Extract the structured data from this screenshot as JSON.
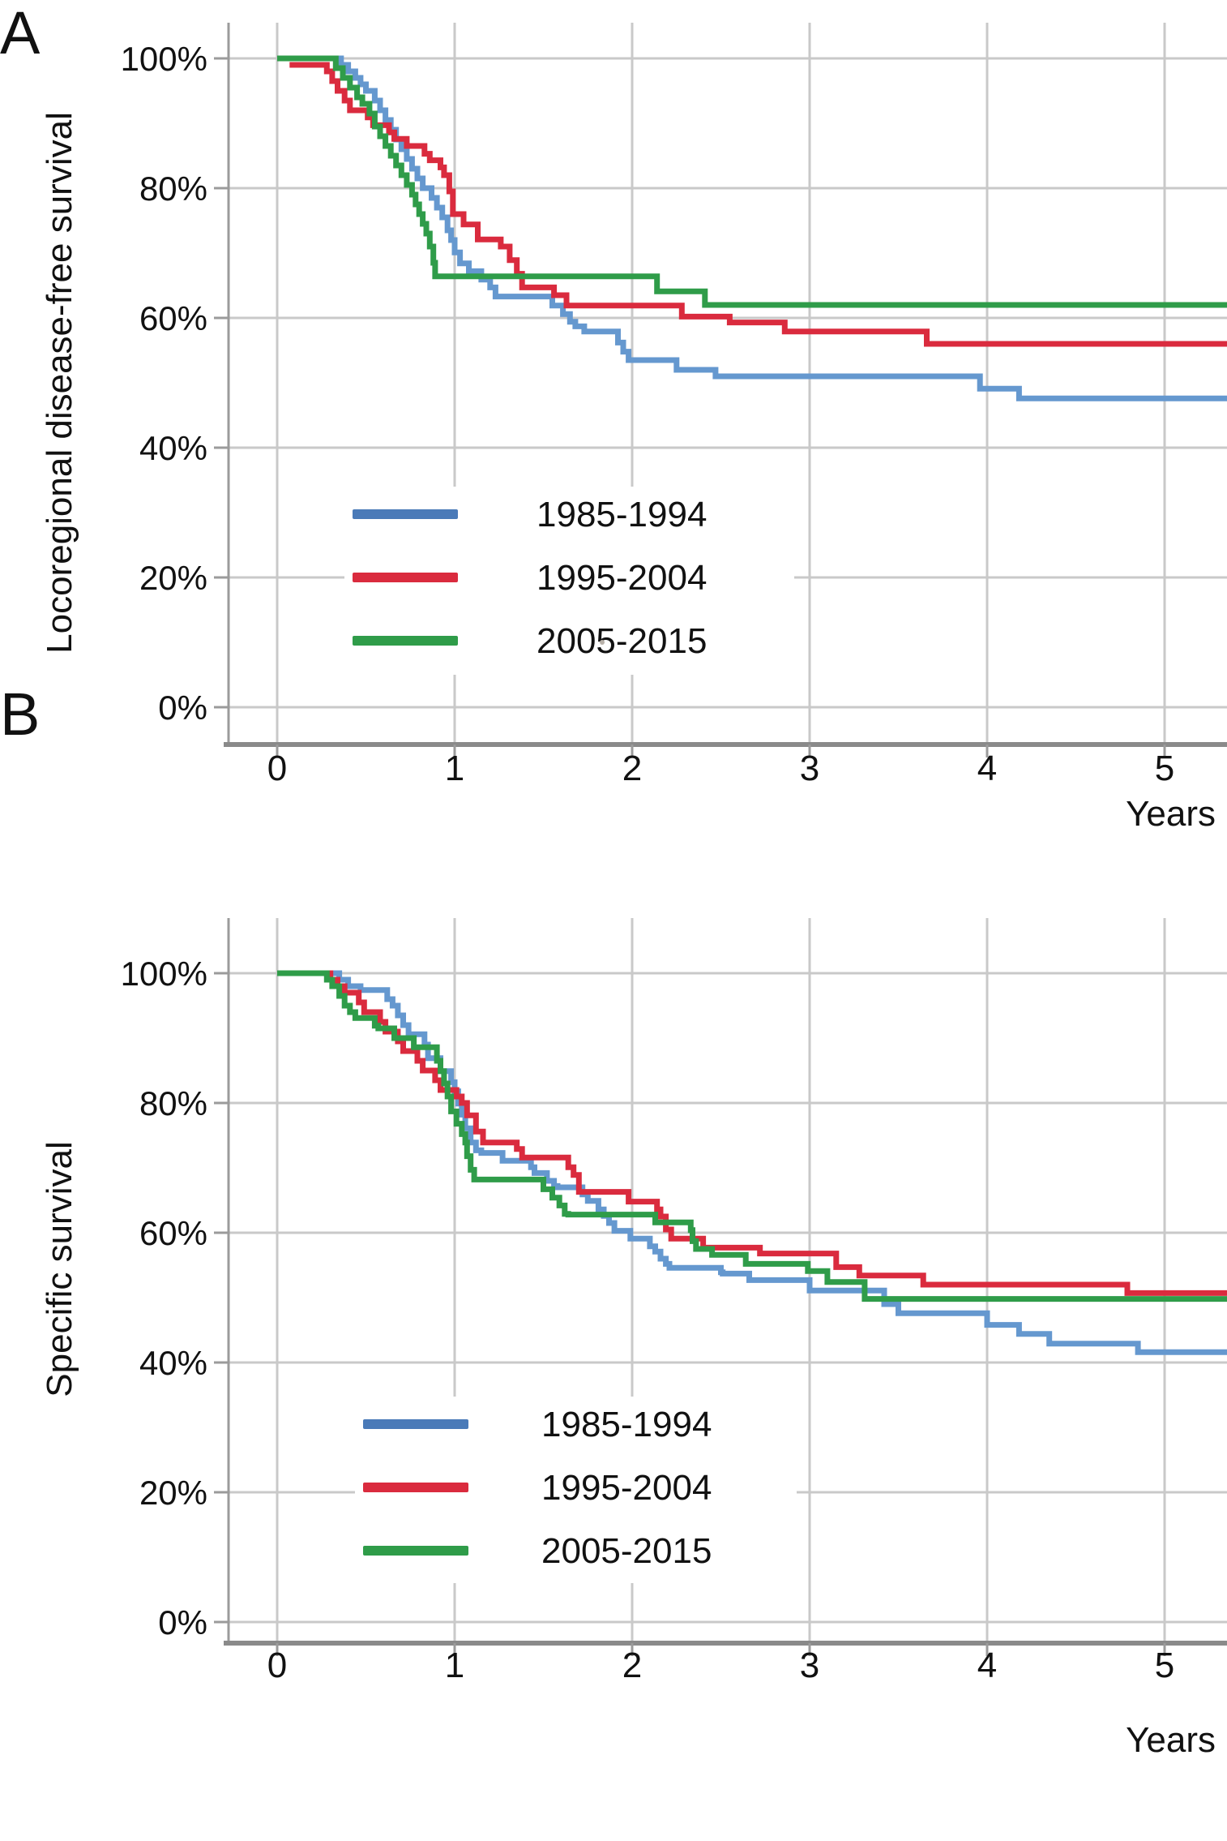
{
  "panels": [
    {
      "panel_letter": "A",
      "y_axis_title": "Locoregional disease-free survival",
      "x_axis_title": "Years",
      "y_tick_labels": [
        "100%",
        "80%",
        "60%",
        "40%",
        "20%",
        "0%"
      ],
      "x_tick_labels": [
        "0",
        "1",
        "2",
        "3",
        "4",
        "5"
      ],
      "legend": {
        "items": [
          {
            "label": "1985-1994",
            "color": "#4a7ab8"
          },
          {
            "label": "1995-2004",
            "color": "#da2b3e"
          },
          {
            "label": "2005-2015",
            "color": "#2f9c49"
          }
        ]
      }
    },
    {
      "panel_letter": "B",
      "y_axis_title": "Specific survival",
      "x_axis_title": "Years",
      "y_tick_labels": [
        "100%",
        "80%",
        "60%",
        "40%",
        "20%",
        "0%"
      ],
      "x_tick_labels": [
        "0",
        "1",
        "2",
        "3",
        "4",
        "5"
      ],
      "legend": {
        "items": [
          {
            "label": "1985-1994",
            "color": "#4a7ab8"
          },
          {
            "label": "1995-2004",
            "color": "#da2b3e"
          },
          {
            "label": "2005-2015",
            "color": "#2f9c49"
          }
        ]
      }
    }
  ],
  "chart_data": [
    {
      "type": "line",
      "subtype": "kaplan-meier-step",
      "title": "",
      "xlabel": "Years",
      "ylabel": "Locoregional disease-free survival",
      "xlim": [
        -0.28,
        5.35
      ],
      "ylim": [
        0,
        100
      ],
      "x_ticks": [
        0,
        1,
        2,
        3,
        4,
        5
      ],
      "y_ticks_percent": [
        100,
        80,
        60,
        40,
        20,
        0
      ],
      "grid": true,
      "legend_position": "inside-lower-left",
      "series": [
        {
          "name": "1985-1994",
          "color": "#6598cf",
          "step": "post",
          "points": [
            [
              0,
              100
            ],
            [
              0.36,
              99
            ],
            [
              0.4,
              98
            ],
            [
              0.44,
              97
            ],
            [
              0.47,
              96
            ],
            [
              0.5,
              95
            ],
            [
              0.55,
              93.5
            ],
            [
              0.58,
              92
            ],
            [
              0.61,
              90.5
            ],
            [
              0.64,
              89
            ],
            [
              0.67,
              87.5
            ],
            [
              0.7,
              86
            ],
            [
              0.73,
              84.5
            ],
            [
              0.76,
              83
            ],
            [
              0.79,
              81.5
            ],
            [
              0.82,
              80
            ],
            [
              0.87,
              78.5
            ],
            [
              0.9,
              77
            ],
            [
              0.93,
              75.5
            ],
            [
              0.96,
              73.5
            ],
            [
              0.98,
              72
            ],
            [
              1.0,
              70.1
            ],
            [
              1.03,
              68.4
            ],
            [
              1.08,
              67.2
            ],
            [
              1.15,
              65.9
            ],
            [
              1.2,
              64.7
            ],
            [
              1.23,
              63.3
            ],
            [
              1.55,
              61.9
            ],
            [
              1.61,
              60.6
            ],
            [
              1.65,
              59.4
            ],
            [
              1.68,
              58.7
            ],
            [
              1.73,
              57.9
            ],
            [
              1.92,
              56.2
            ],
            [
              1.95,
              54.8
            ],
            [
              1.98,
              53.5
            ],
            [
              2.25,
              52
            ],
            [
              2.47,
              51
            ],
            [
              3.96,
              49.1
            ],
            [
              4.18,
              47.6
            ]
          ]
        },
        {
          "name": "1995-2004",
          "color": "#da2b3e",
          "step": "post",
          "points": [
            [
              0.07,
              99
            ],
            [
              0.28,
              98
            ],
            [
              0.31,
              96.5
            ],
            [
              0.34,
              95
            ],
            [
              0.38,
              93.5
            ],
            [
              0.41,
              92
            ],
            [
              0.51,
              90.9
            ],
            [
              0.54,
              89.7
            ],
            [
              0.63,
              88.6
            ],
            [
              0.66,
              87.6
            ],
            [
              0.73,
              86.5
            ],
            [
              0.83,
              85.3
            ],
            [
              0.86,
              84.3
            ],
            [
              0.92,
              83.2
            ],
            [
              0.94,
              82
            ],
            [
              0.97,
              79.5
            ],
            [
              0.99,
              76
            ],
            [
              1.05,
              74.4
            ],
            [
              1.13,
              72.1
            ],
            [
              1.26,
              71
            ],
            [
              1.31,
              68.9
            ],
            [
              1.35,
              66.8
            ],
            [
              1.38,
              64.7
            ],
            [
              1.56,
              63.5
            ],
            [
              1.63,
              61.9
            ],
            [
              2.28,
              60.2
            ],
            [
              2.55,
              59.3
            ],
            [
              2.86,
              57.9
            ],
            [
              3.66,
              56
            ]
          ]
        },
        {
          "name": "2005-2015",
          "color": "#2f9c49",
          "step": "post",
          "points": [
            [
              0,
              100
            ],
            [
              0.33,
              98.5
            ],
            [
              0.37,
              97
            ],
            [
              0.41,
              95.5
            ],
            [
              0.45,
              94
            ],
            [
              0.48,
              93
            ],
            [
              0.52,
              91.5
            ],
            [
              0.55,
              89.5
            ],
            [
              0.58,
              88
            ],
            [
              0.61,
              86.5
            ],
            [
              0.64,
              85
            ],
            [
              0.67,
              83.5
            ],
            [
              0.7,
              82
            ],
            [
              0.73,
              80.5
            ],
            [
              0.76,
              79
            ],
            [
              0.78,
              77.5
            ],
            [
              0.8,
              76
            ],
            [
              0.82,
              74.5
            ],
            [
              0.84,
              73
            ],
            [
              0.86,
              71
            ],
            [
              0.88,
              68.5
            ],
            [
              0.89,
              66.4
            ],
            [
              2.14,
              64.1
            ],
            [
              2.41,
              62
            ]
          ]
        }
      ]
    },
    {
      "type": "line",
      "subtype": "kaplan-meier-step",
      "title": "",
      "xlabel": "Years",
      "ylabel": "Specific survival",
      "xlim": [
        -0.28,
        5.35
      ],
      "ylim": [
        0,
        100
      ],
      "x_ticks": [
        0,
        1,
        2,
        3,
        4,
        5
      ],
      "y_ticks_percent": [
        100,
        80,
        60,
        40,
        20,
        0
      ],
      "grid": true,
      "legend_position": "inside-lower-left",
      "series": [
        {
          "name": "1985-1994",
          "color": "#6598cf",
          "step": "post",
          "points": [
            [
              0,
              100
            ],
            [
              0.35,
              99
            ],
            [
              0.4,
              98
            ],
            [
              0.47,
              97.4
            ],
            [
              0.62,
              96
            ],
            [
              0.65,
              95
            ],
            [
              0.68,
              93.5
            ],
            [
              0.71,
              92
            ],
            [
              0.74,
              90.6
            ],
            [
              0.83,
              89
            ],
            [
              0.85,
              86.9
            ],
            [
              0.92,
              84.9
            ],
            [
              0.98,
              83.2
            ],
            [
              1.0,
              81.8
            ],
            [
              1.02,
              79.9
            ],
            [
              1.04,
              78.2
            ],
            [
              1.06,
              76.1
            ],
            [
              1.09,
              73.9
            ],
            [
              1.12,
              72.7
            ],
            [
              1.15,
              72.3
            ],
            [
              1.27,
              71.1
            ],
            [
              1.43,
              70.1
            ],
            [
              1.45,
              69.2
            ],
            [
              1.52,
              68
            ],
            [
              1.56,
              67.2
            ],
            [
              1.58,
              67
            ],
            [
              1.72,
              65.9
            ],
            [
              1.75,
              64.9
            ],
            [
              1.81,
              63.6
            ],
            [
              1.84,
              62.6
            ],
            [
              1.87,
              61.5
            ],
            [
              1.9,
              60.3
            ],
            [
              1.99,
              59.1
            ],
            [
              2.1,
              57.9
            ],
            [
              2.13,
              57.1
            ],
            [
              2.16,
              56
            ],
            [
              2.19,
              55.2
            ],
            [
              2.21,
              54.6
            ],
            [
              2.5,
              53.9
            ],
            [
              2.51,
              53.7
            ],
            [
              2.66,
              52.7
            ],
            [
              3.0,
              51.1
            ],
            [
              3.42,
              49
            ],
            [
              3.5,
              47.6
            ],
            [
              4.0,
              45.8
            ],
            [
              4.18,
              44.4
            ],
            [
              4.35,
              42.9
            ],
            [
              4.85,
              41.6
            ]
          ]
        },
        {
          "name": "1995-2004",
          "color": "#da2b3e",
          "step": "post",
          "points": [
            [
              0,
              100
            ],
            [
              0.3,
              99
            ],
            [
              0.34,
              98
            ],
            [
              0.38,
              97
            ],
            [
              0.46,
              95.5
            ],
            [
              0.49,
              94
            ],
            [
              0.58,
              92.5
            ],
            [
              0.61,
              91
            ],
            [
              0.68,
              89.5
            ],
            [
              0.71,
              88
            ],
            [
              0.79,
              86.5
            ],
            [
              0.82,
              85
            ],
            [
              0.89,
              83.5
            ],
            [
              0.92,
              82
            ],
            [
              1.01,
              81
            ],
            [
              1.04,
              80
            ],
            [
              1.07,
              78.1
            ],
            [
              1.12,
              75.6
            ],
            [
              1.16,
              73.9
            ],
            [
              1.35,
              72.9
            ],
            [
              1.38,
              71.6
            ],
            [
              1.64,
              70.1
            ],
            [
              1.67,
              68.9
            ],
            [
              1.7,
              66.3
            ],
            [
              1.98,
              64.8
            ],
            [
              2.14,
              63.6
            ],
            [
              2.16,
              62.5
            ],
            [
              2.19,
              60.5
            ],
            [
              2.22,
              59.1
            ],
            [
              2.4,
              57.7
            ],
            [
              2.72,
              56.8
            ],
            [
              3.15,
              54.7
            ],
            [
              3.28,
              53.4
            ],
            [
              3.64,
              52
            ],
            [
              4.79,
              50.7
            ]
          ]
        },
        {
          "name": "2005-2015",
          "color": "#2f9c49",
          "step": "post",
          "points": [
            [
              0,
              100
            ],
            [
              0.28,
              99
            ],
            [
              0.31,
              98
            ],
            [
              0.35,
              96.5
            ],
            [
              0.38,
              95
            ],
            [
              0.41,
              94
            ],
            [
              0.44,
              93.1
            ],
            [
              0.55,
              91.9
            ],
            [
              0.57,
              91.5
            ],
            [
              0.66,
              90
            ],
            [
              0.77,
              88.6
            ],
            [
              0.9,
              86.5
            ],
            [
              0.92,
              84.9
            ],
            [
              0.94,
              83
            ],
            [
              0.96,
              81
            ],
            [
              0.98,
              78.7
            ],
            [
              1.01,
              76.8
            ],
            [
              1.04,
              75.2
            ],
            [
              1.06,
              73.9
            ],
            [
              1.07,
              71.8
            ],
            [
              1.09,
              69.7
            ],
            [
              1.11,
              68.2
            ],
            [
              1.5,
              66.7
            ],
            [
              1.55,
              65.4
            ],
            [
              1.59,
              64.2
            ],
            [
              1.62,
              62.9
            ],
            [
              1.64,
              62.8
            ],
            [
              2.13,
              61.6
            ],
            [
              2.33,
              60.4
            ],
            [
              2.34,
              58.7
            ],
            [
              2.36,
              57.5
            ],
            [
              2.45,
              56.6
            ],
            [
              2.64,
              55.2
            ],
            [
              2.99,
              54.1
            ],
            [
              3.1,
              52.4
            ],
            [
              3.31,
              49.8
            ]
          ]
        }
      ]
    }
  ]
}
